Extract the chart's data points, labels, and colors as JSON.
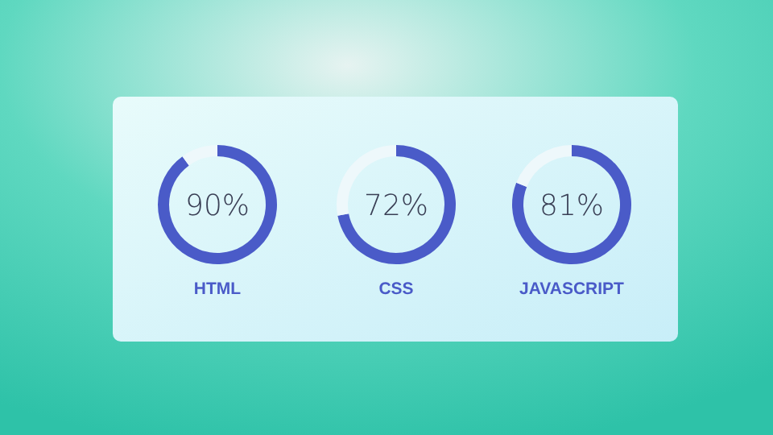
{
  "chart_data": [
    {
      "type": "donut",
      "title": "HTML",
      "categories": [
        null,
        null
      ],
      "values": [
        90,
        10
      ],
      "colors": [
        "#4a5bc8",
        "#eef8fb"
      ],
      "value_labels": [
        "90%",
        null
      ]
    },
    {
      "type": "donut",
      "title": "CSS",
      "categories": [
        null,
        null
      ],
      "values": [
        72,
        28
      ],
      "colors": [
        "#4a5bc8",
        "#eef8fb"
      ],
      "value_labels": [
        "72%",
        null
      ]
    },
    {
      "type": "donut",
      "title": "JAVASCRIPT",
      "categories": [
        null,
        null
      ],
      "values": [
        81,
        19
      ],
      "colors": [
        "#4a5bc8",
        "#eef8fb"
      ],
      "value_labels": [
        "81%",
        null
      ]
    }
  ]
}
